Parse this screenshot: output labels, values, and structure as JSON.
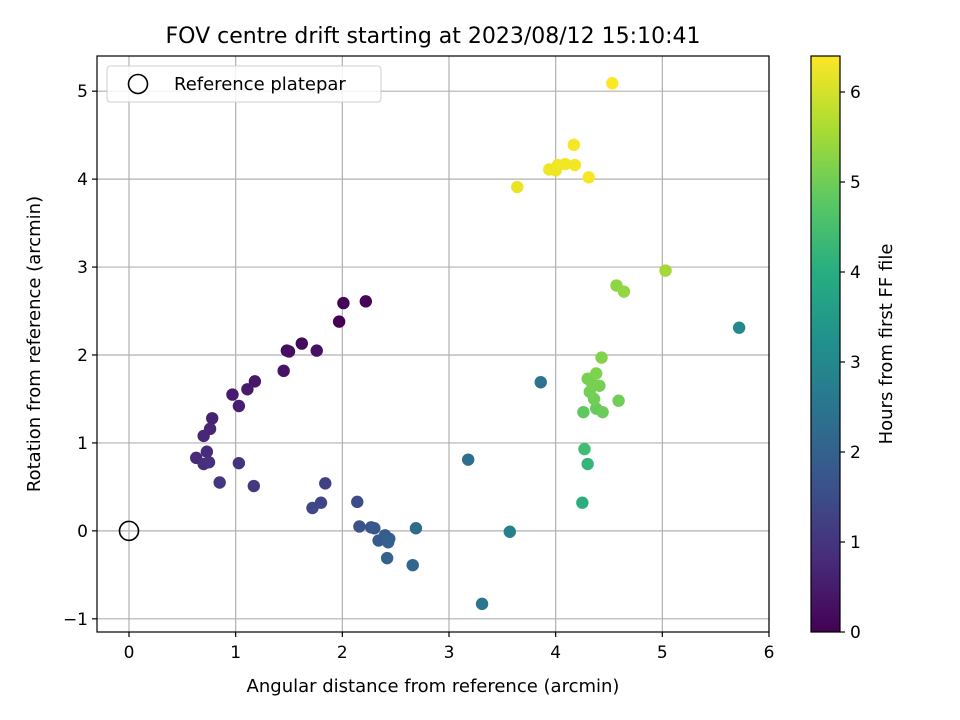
{
  "chart_data": {
    "type": "scatter",
    "title": "FOV centre drift starting at 2023/08/12 15:10:41",
    "xlabel": "Angular distance from reference (arcmin)",
    "ylabel": "Rotation from reference (arcmin)",
    "xlim": [
      -0.3,
      6.0
    ],
    "ylim": [
      -1.15,
      5.4
    ],
    "xticks": [
      0,
      1,
      2,
      3,
      4,
      5,
      6
    ],
    "yticks": [
      -1,
      0,
      1,
      2,
      3,
      4,
      5
    ],
    "grid": true,
    "legend": {
      "placement": "upper-left",
      "entries": [
        {
          "label": "Reference platepar",
          "marker": "open-circle"
        }
      ]
    },
    "reference_point": {
      "x": 0,
      "y": 0
    },
    "colorbar": {
      "label": "Hours from first FF file",
      "range": [
        0,
        6.4
      ],
      "ticks": [
        0,
        1,
        2,
        3,
        4,
        5,
        6
      ],
      "colormap": "viridis"
    },
    "points": [
      {
        "x": 1.97,
        "y": 2.38,
        "c": 0.0
      },
      {
        "x": 2.01,
        "y": 2.59,
        "c": 0.05
      },
      {
        "x": 2.22,
        "y": 2.61,
        "c": 0.1
      },
      {
        "x": 1.62,
        "y": 2.13,
        "c": 0.15
      },
      {
        "x": 1.48,
        "y": 2.05,
        "c": 0.2
      },
      {
        "x": 1.5,
        "y": 2.04,
        "c": 0.25
      },
      {
        "x": 1.76,
        "y": 2.05,
        "c": 0.3
      },
      {
        "x": 1.45,
        "y": 1.82,
        "c": 0.35
      },
      {
        "x": 1.18,
        "y": 1.7,
        "c": 0.4
      },
      {
        "x": 1.11,
        "y": 1.61,
        "c": 0.45
      },
      {
        "x": 0.97,
        "y": 1.55,
        "c": 0.5
      },
      {
        "x": 1.03,
        "y": 1.42,
        "c": 0.55
      },
      {
        "x": 0.78,
        "y": 1.28,
        "c": 0.6
      },
      {
        "x": 0.76,
        "y": 1.16,
        "c": 0.65
      },
      {
        "x": 0.7,
        "y": 1.08,
        "c": 0.7
      },
      {
        "x": 0.63,
        "y": 0.83,
        "c": 0.75
      },
      {
        "x": 0.73,
        "y": 0.9,
        "c": 0.8
      },
      {
        "x": 0.7,
        "y": 0.76,
        "c": 0.85
      },
      {
        "x": 0.75,
        "y": 0.78,
        "c": 0.9
      },
      {
        "x": 1.03,
        "y": 0.77,
        "c": 0.95
      },
      {
        "x": 0.85,
        "y": 0.55,
        "c": 1.0
      },
      {
        "x": 1.17,
        "y": 0.51,
        "c": 1.05
      },
      {
        "x": 1.84,
        "y": 0.54,
        "c": 1.2
      },
      {
        "x": 1.8,
        "y": 0.32,
        "c": 1.3
      },
      {
        "x": 1.72,
        "y": 0.26,
        "c": 1.35
      },
      {
        "x": 2.14,
        "y": 0.33,
        "c": 1.5
      },
      {
        "x": 2.16,
        "y": 0.05,
        "c": 1.6
      },
      {
        "x": 2.27,
        "y": 0.04,
        "c": 1.7
      },
      {
        "x": 2.3,
        "y": 0.03,
        "c": 1.75
      },
      {
        "x": 2.34,
        "y": -0.11,
        "c": 1.8
      },
      {
        "x": 2.4,
        "y": -0.05,
        "c": 1.85
      },
      {
        "x": 2.44,
        "y": -0.09,
        "c": 1.9
      },
      {
        "x": 2.43,
        "y": -0.13,
        "c": 1.95
      },
      {
        "x": 2.42,
        "y": -0.31,
        "c": 2.0
      },
      {
        "x": 2.66,
        "y": -0.39,
        "c": 2.1
      },
      {
        "x": 2.69,
        "y": 0.03,
        "c": 2.2
      },
      {
        "x": 3.18,
        "y": 0.81,
        "c": 2.3
      },
      {
        "x": 3.31,
        "y": -0.83,
        "c": 2.5
      },
      {
        "x": 3.86,
        "y": 1.69,
        "c": 2.4
      },
      {
        "x": 3.57,
        "y": -0.01,
        "c": 2.8
      },
      {
        "x": 5.72,
        "y": 2.31,
        "c": 3.0
      },
      {
        "x": 4.25,
        "y": 0.32,
        "c": 4.0
      },
      {
        "x": 4.3,
        "y": 0.76,
        "c": 4.2
      },
      {
        "x": 4.27,
        "y": 0.93,
        "c": 4.4
      },
      {
        "x": 4.26,
        "y": 1.35,
        "c": 4.8
      },
      {
        "x": 4.38,
        "y": 1.39,
        "c": 4.9
      },
      {
        "x": 4.44,
        "y": 1.35,
        "c": 4.95
      },
      {
        "x": 4.59,
        "y": 1.48,
        "c": 5.0
      },
      {
        "x": 4.36,
        "y": 1.5,
        "c": 5.0
      },
      {
        "x": 4.32,
        "y": 1.58,
        "c": 5.05
      },
      {
        "x": 4.41,
        "y": 1.65,
        "c": 5.05
      },
      {
        "x": 4.34,
        "y": 1.68,
        "c": 5.1
      },
      {
        "x": 4.3,
        "y": 1.73,
        "c": 5.1
      },
      {
        "x": 4.38,
        "y": 1.79,
        "c": 5.15
      },
      {
        "x": 4.43,
        "y": 1.97,
        "c": 5.2
      },
      {
        "x": 4.57,
        "y": 2.79,
        "c": 5.3
      },
      {
        "x": 4.64,
        "y": 2.72,
        "c": 5.35
      },
      {
        "x": 5.03,
        "y": 2.96,
        "c": 5.5
      },
      {
        "x": 3.64,
        "y": 3.91,
        "c": 6.2
      },
      {
        "x": 3.94,
        "y": 4.11,
        "c": 6.25
      },
      {
        "x": 4.0,
        "y": 4.1,
        "c": 6.25
      },
      {
        "x": 4.02,
        "y": 4.16,
        "c": 6.3
      },
      {
        "x": 4.09,
        "y": 4.17,
        "c": 6.3
      },
      {
        "x": 4.18,
        "y": 4.16,
        "c": 6.3
      },
      {
        "x": 4.17,
        "y": 4.39,
        "c": 6.35
      },
      {
        "x": 4.31,
        "y": 4.02,
        "c": 6.35
      },
      {
        "x": 4.53,
        "y": 5.09,
        "c": 6.4
      }
    ]
  }
}
